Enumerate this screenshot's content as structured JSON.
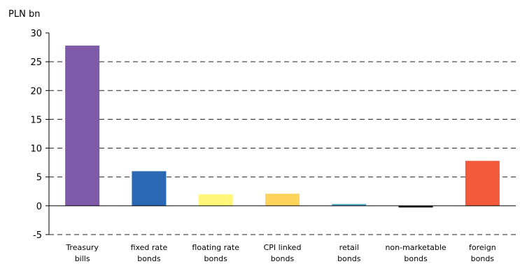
{
  "chart_data": {
    "type": "bar",
    "ylabel": "PLN bn",
    "ylim": [
      -5,
      30
    ],
    "yticks": [
      -5,
      0,
      5,
      10,
      15,
      20,
      25,
      30
    ],
    "grid": "dashed horizontal",
    "categories": [
      [
        "Treasury",
        "bills"
      ],
      [
        "fixed rate",
        "bonds"
      ],
      [
        "floating rate",
        "bonds"
      ],
      [
        "CPI linked",
        "bonds"
      ],
      [
        "retail",
        "bonds"
      ],
      [
        "non-marketable",
        "bonds"
      ],
      [
        "foreign",
        "bonds"
      ]
    ],
    "values": [
      27.8,
      6.0,
      2.0,
      2.1,
      0.3,
      -0.3,
      7.8
    ],
    "colors": [
      "#7f5aa8",
      "#2a67b4",
      "#fff67a",
      "#ffd45a",
      "#49a6c9",
      "#1a1a1a",
      "#f35a3c"
    ]
  }
}
